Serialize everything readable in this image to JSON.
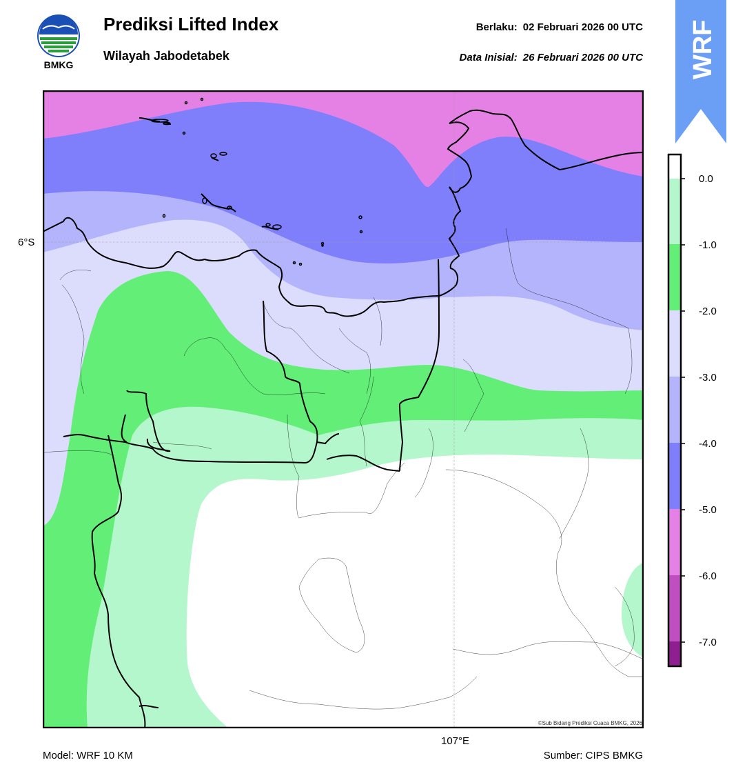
{
  "header": {
    "title": "Prediksi Lifted Index",
    "subtitle": "Wilayah Jabodetabek",
    "valid_label": "Berlaku:",
    "valid_value": "02 Februari 2026 00 UTC",
    "init_label": "Data Inisial:",
    "init_value": "26 Februari 2026 00 UTC"
  },
  "logo": {
    "text": "BMKG",
    "icon": "bmkg-logo"
  },
  "badge": {
    "text": "WRF",
    "color": "#6a9ff5"
  },
  "map": {
    "lat_label": "6°S",
    "lon_label": "107°E",
    "copyright": "©Sub Bidang Prediksi Cuaca BMKG, 2026"
  },
  "colorbar": {
    "ticks": [
      "0.0",
      "-1.0",
      "-2.0",
      "-3.0",
      "-4.0",
      "-5.0",
      "-6.0",
      "-7.0"
    ],
    "colors": {
      "above_0": "#ffffff",
      "0_to_-1": "#b4f7cc",
      "-1_to_-2": "#63ee78",
      "-2_to_-3": "#dcdcfc",
      "-3_to_-4": "#b4b4fc",
      "-4_to_-5": "#7f7ffc",
      "-5_to_-6": "#e581e5",
      "-6_to_-7": "#c04ec0",
      "below_-7": "#8f1f8f"
    }
  },
  "footer": {
    "model": "Model: WRF 10 KM",
    "source": "Sumber: CIPS BMKG"
  }
}
